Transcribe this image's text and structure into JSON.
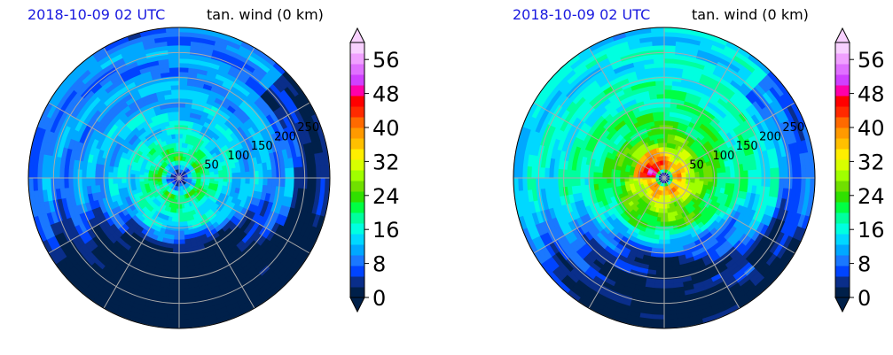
{
  "panels": [
    {
      "title_left": "2018-10-09 02 UTC",
      "title_right": "tan. wind (0 km)",
      "eye_color": "#0000aa",
      "center_offset": [
        0,
        0
      ],
      "core_max": 22
    },
    {
      "title_left": "2018-10-09 02 UTC",
      "title_right": "tan. wind (0 km)",
      "eye_color": "#0000aa",
      "center_offset": [
        0,
        0
      ],
      "core_max": 42
    }
  ],
  "chart_data": [
    {
      "type": "heatmap",
      "subtype": "polar filled contour",
      "title": "2018-10-09 02 UTC",
      "variable": "tan. wind (0 km)",
      "radial_ticks": [
        "50",
        "100",
        "150",
        "200",
        "250"
      ],
      "colorbar": {
        "ticks": [
          0,
          8,
          16,
          24,
          32,
          40,
          48,
          56
        ],
        "range": [
          0,
          60
        ],
        "extend": "both"
      },
      "max_wind_approx": 22,
      "radius_of_max_wind_approx": 40
    },
    {
      "type": "heatmap",
      "subtype": "polar filled contour",
      "title": "2018-10-09 02 UTC",
      "variable": "tan. wind (0 km)",
      "radial_ticks": [
        "50",
        "100",
        "150",
        "200",
        "250"
      ],
      "colorbar": {
        "ticks": [
          0,
          8,
          16,
          24,
          32,
          40,
          48,
          56
        ],
        "range": [
          0,
          60
        ],
        "extend": "both"
      },
      "max_wind_approx": 42,
      "radius_of_max_wind_approx": 25
    }
  ],
  "colormap": [
    "#00204a",
    "#0a2e8a",
    "#0044ff",
    "#1a78ff",
    "#00a8ff",
    "#00d8ff",
    "#00ffe0",
    "#00ff9e",
    "#00ff44",
    "#30e000",
    "#70e000",
    "#a0ff00",
    "#d8ff00",
    "#ffee00",
    "#ffc000",
    "#ff9a00",
    "#ff6a00",
    "#ff2a00",
    "#ff0000",
    "#ff00aa",
    "#d040ff",
    "#e070ff",
    "#f0a0ff",
    "#f8d0ff"
  ]
}
